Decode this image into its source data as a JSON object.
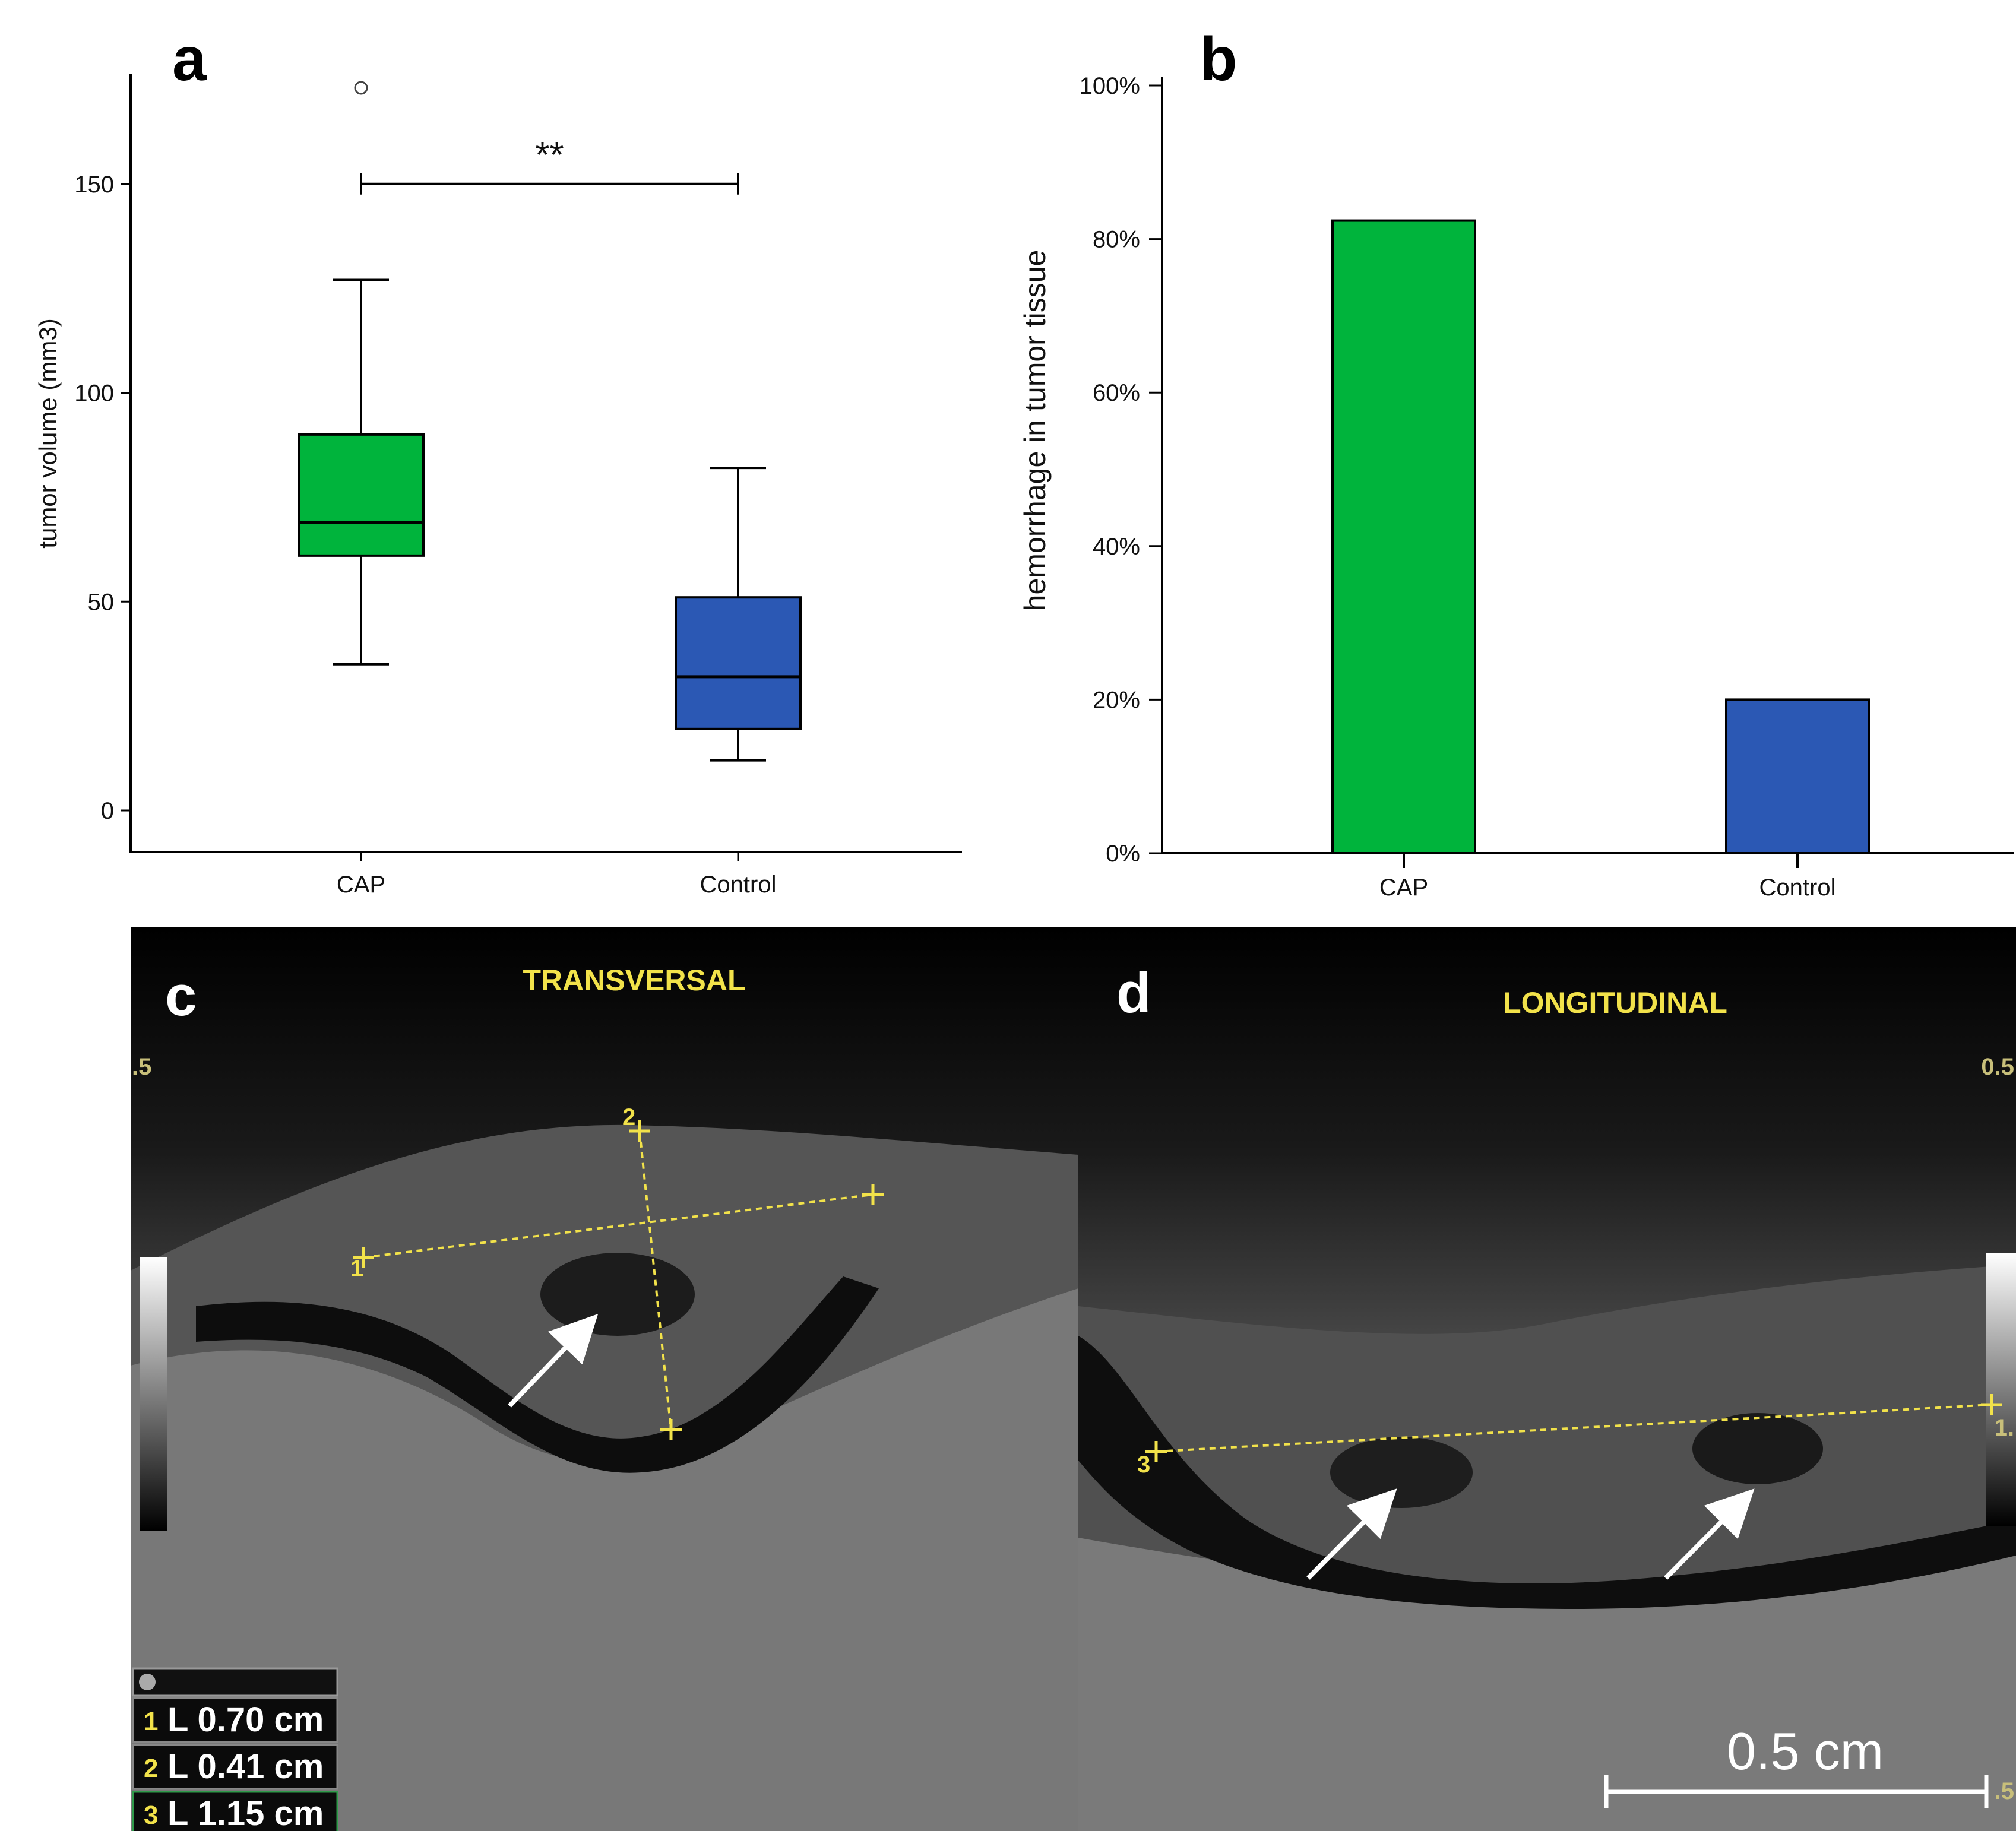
{
  "chart_data": [
    {
      "panel": "a",
      "type": "box",
      "categories": [
        "CAP",
        "Control"
      ],
      "ylabel": "tumor volume (mm3)",
      "ylim": [
        -10,
        178
      ],
      "yticks": [
        0,
        50,
        100,
        150
      ],
      "boxes": [
        {
          "name": "CAP",
          "whisker_low": 35,
          "q1": 61,
          "median": 69,
          "q3": 90,
          "whisker_high": 127,
          "outliers": [
            173
          ],
          "color": "#00b43c"
        },
        {
          "name": "Control",
          "whisker_low": 12,
          "q1": 19.5,
          "median": 32,
          "q3": 51,
          "whisker_high": 82,
          "outliers": [],
          "color": "#2b58b4"
        }
      ],
      "significance": {
        "label": "**",
        "y": 150
      }
    },
    {
      "panel": "b",
      "type": "bar",
      "categories": [
        "CAP",
        "Control"
      ],
      "values": [
        82.4,
        20
      ],
      "colors": [
        "#00b43c",
        "#2b58b4"
      ],
      "ylabel": "hemorrhage in tumor tissue",
      "ylim": [
        0,
        100
      ],
      "yticks": [
        "0%",
        "20%",
        "40%",
        "60%",
        "80%",
        "100%"
      ]
    }
  ],
  "panels": {
    "a_label": "a",
    "b_label": "b",
    "c_label": "c",
    "d_label": "d"
  },
  "ultrasound": {
    "c_title": "TRANSVERSAL",
    "d_title": "LONGITUDINAL",
    "c_depth_tick": ".5",
    "d_depth_tick_top": "0.5",
    "d_depth_tick_mid": "1.",
    "d_depth_tick_bottom": ".5",
    "marker_1": "1",
    "marker_2": "2",
    "marker_3": "3",
    "measurements": [
      {
        "num": "1",
        "text": "L 0.70 cm"
      },
      {
        "num": "2",
        "text": "L 0.41 cm"
      },
      {
        "num": "3",
        "text": "L 1.15 cm"
      }
    ],
    "scale_bar": "0.5 cm"
  }
}
